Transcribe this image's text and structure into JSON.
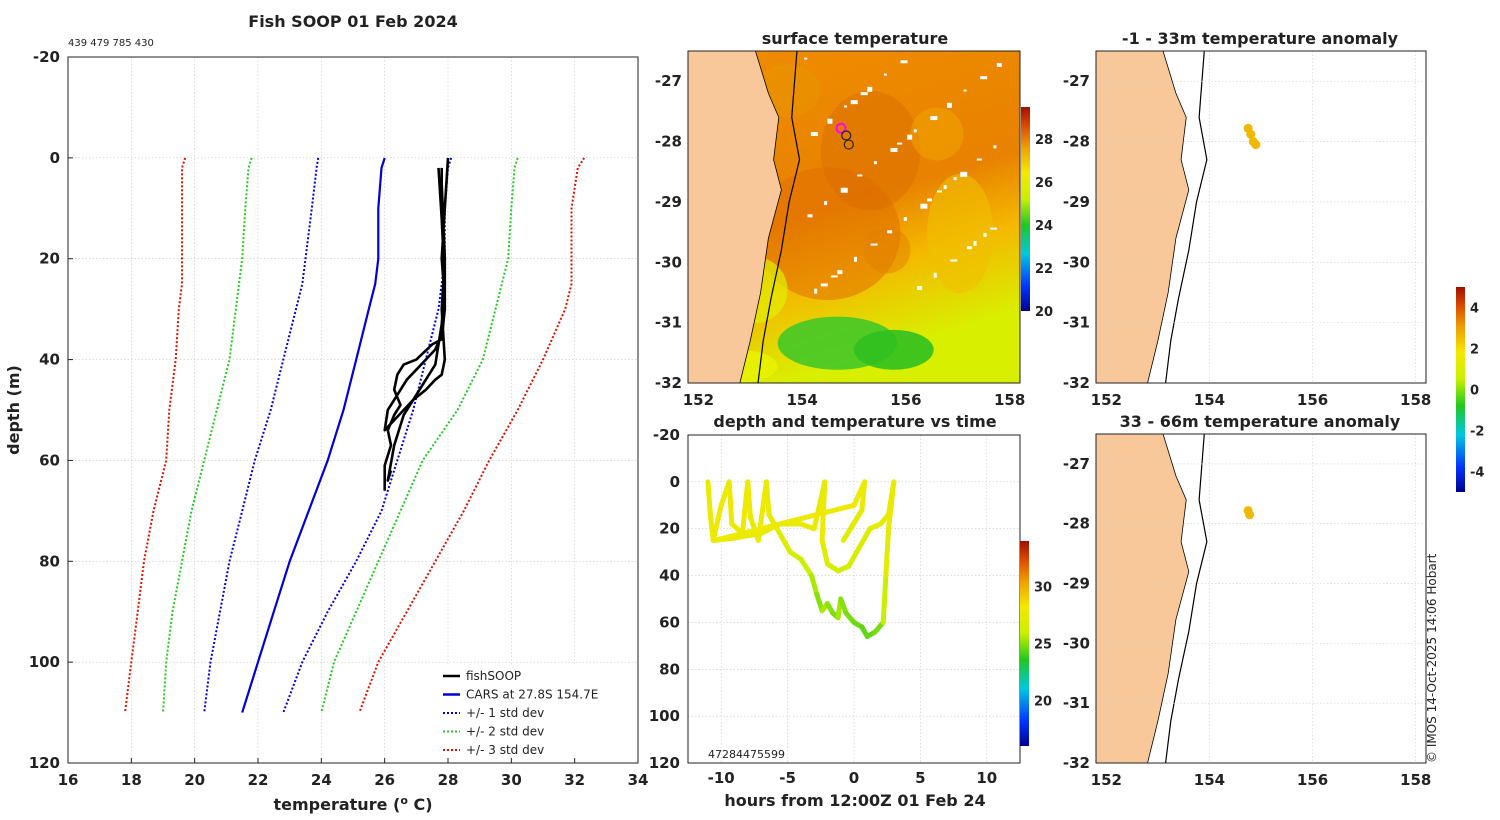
{
  "chart_data": [
    {
      "id": "profile",
      "type": "line",
      "title": "Fish SOOP 01 Feb 2024",
      "subtitle": "439 479 785 430",
      "xlabel": "temperature (",
      "xlabel_sup": "o",
      "xlabel_end": " C)",
      "ylabel": "depth (m)",
      "xlim": [
        16,
        34
      ],
      "ylim": [
        -20,
        120
      ],
      "xticks": [
        "16",
        "18",
        "20",
        "22",
        "24",
        "26",
        "28",
        "30",
        "32",
        "34"
      ],
      "yticks": [
        "-20",
        "0",
        "20",
        "40",
        "60",
        "80",
        "100",
        "120"
      ],
      "legend": [
        "fishSOOP",
        "CARS at 27.8S 154.7E",
        "+/- 1 std dev",
        "+/- 2 std dev",
        "+/- 3 std dev"
      ],
      "colors": {
        "fish": "#000000",
        "cars": "#0000dd",
        "std1": "#0000dd",
        "std2": "#22cc22",
        "std3": "#dd1100"
      },
      "depths": [
        0,
        2,
        10,
        20,
        25,
        30,
        40,
        50,
        60,
        70,
        80,
        90,
        100,
        110
      ],
      "cars": [
        26.0,
        25.9,
        25.8,
        25.8,
        25.7,
        25.5,
        25.1,
        24.7,
        24.2,
        23.6,
        23.0,
        22.5,
        22.0,
        21.5
      ],
      "std1_minus": [
        23.9,
        23.85,
        23.7,
        23.5,
        23.4,
        23.2,
        22.8,
        22.4,
        21.9,
        21.5,
        21.1,
        20.8,
        20.5,
        20.3
      ],
      "std1_plus": [
        28.1,
        28.0,
        27.9,
        27.9,
        27.8,
        27.7,
        27.3,
        26.9,
        26.4,
        25.9,
        25.1,
        24.2,
        23.4,
        22.8
      ],
      "std2_minus": [
        21.8,
        21.7,
        21.6,
        21.5,
        21.4,
        21.3,
        21.1,
        20.7,
        20.3,
        19.9,
        19.6,
        19.3,
        19.1,
        19.0
      ],
      "std2_plus": [
        30.2,
        30.1,
        30.0,
        29.9,
        29.7,
        29.5,
        29.1,
        28.3,
        27.2,
        26.5,
        25.8,
        25.1,
        24.4,
        24.0
      ],
      "std3_minus": [
        19.7,
        19.6,
        19.6,
        19.6,
        19.6,
        19.5,
        19.4,
        19.2,
        19.1,
        18.7,
        18.4,
        18.2,
        18.0,
        17.8
      ],
      "std3_plus": [
        32.3,
        32.1,
        31.9,
        31.9,
        31.9,
        31.7,
        31.0,
        30.2,
        29.3,
        28.5,
        27.6,
        26.7,
        25.8,
        25.2
      ],
      "fish_casts": [
        [
          [
            27.8,
            2
          ],
          [
            27.8,
            10
          ],
          [
            27.9,
            20
          ],
          [
            27.9,
            30
          ],
          [
            27.8,
            36
          ],
          [
            27.5,
            37
          ],
          [
            27.0,
            40
          ],
          [
            26.6,
            41
          ],
          [
            26.4,
            43
          ],
          [
            26.3,
            46
          ],
          [
            26.5,
            49
          ],
          [
            26.3,
            51
          ],
          [
            26.1,
            54
          ],
          [
            26.2,
            57
          ],
          [
            26.0,
            61
          ],
          [
            26.0,
            66
          ]
        ],
        [
          [
            28.0,
            0
          ],
          [
            27.9,
            10
          ],
          [
            27.8,
            20
          ],
          [
            27.9,
            28
          ],
          [
            27.8,
            35
          ],
          [
            27.6,
            38
          ],
          [
            27.3,
            40
          ],
          [
            27.0,
            42
          ],
          [
            26.7,
            44
          ],
          [
            26.4,
            47
          ],
          [
            26.1,
            50
          ],
          [
            26.0,
            54
          ],
          [
            26.3,
            52
          ],
          [
            26.6,
            50
          ],
          [
            26.9,
            48
          ],
          [
            27.3,
            46
          ],
          [
            27.6,
            44
          ],
          [
            27.8,
            43
          ],
          [
            27.9,
            40
          ],
          [
            27.8,
            30
          ],
          [
            27.9,
            20
          ],
          [
            27.8,
            5
          ]
        ],
        [
          [
            27.7,
            2
          ],
          [
            27.8,
            12
          ],
          [
            27.9,
            25
          ],
          [
            27.8,
            33
          ],
          [
            27.6,
            41
          ],
          [
            27.0,
            47
          ],
          [
            26.6,
            51
          ],
          [
            26.3,
            57
          ],
          [
            26.1,
            64
          ],
          [
            26.2,
            62
          ]
        ]
      ]
    },
    {
      "id": "surface",
      "type": "heatmap",
      "title": "surface temperature",
      "xlim": [
        151.8,
        158.2
      ],
      "ylim": [
        -32,
        -26.5
      ],
      "xticks": [
        "152",
        "154",
        "156",
        "158"
      ],
      "yticks": [
        "-27",
        "-28",
        "-29",
        "-30",
        "-31",
        "-32"
      ],
      "colorbar_ticks": [
        "20",
        "22",
        "24",
        "26",
        "28"
      ],
      "colorbar_range": [
        20,
        29.5
      ],
      "track": [
        [
          154.75,
          -27.78
        ],
        [
          154.85,
          -27.9
        ],
        [
          154.9,
          -28.05
        ]
      ]
    },
    {
      "id": "timeseries",
      "type": "scatter",
      "title": "depth and temperature vs time",
      "xlabel": "hours from 12:00Z 01 Feb 24",
      "xlim": [
        -12.5,
        12.5
      ],
      "ylim": [
        -20,
        120
      ],
      "xticks": [
        "-10",
        "-5",
        "0",
        "5",
        "10"
      ],
      "yticks": [
        "-20",
        "0",
        "20",
        "40",
        "60",
        "80",
        "100",
        "120"
      ],
      "colorbar_ticks": [
        "20",
        "25",
        "30"
      ],
      "colorbar_range": [
        16,
        34
      ],
      "id_labels": "47284475599",
      "profile": [
        [
          -11.0,
          0,
          27.8
        ],
        [
          -10.8,
          15,
          27.8
        ],
        [
          -10.6,
          25,
          27.6
        ],
        [
          -10.0,
          10,
          27.9
        ],
        [
          -9.4,
          0,
          27.9
        ],
        [
          -9.2,
          18,
          27.8
        ],
        [
          -8.4,
          22,
          27.6
        ],
        [
          -8.0,
          0,
          28.0
        ],
        [
          -7.8,
          15,
          27.8
        ],
        [
          -7.2,
          25,
          27.6
        ],
        [
          -6.6,
          0,
          27.9
        ],
        [
          -6.4,
          14,
          27.8
        ],
        [
          -5.6,
          22,
          27.5
        ],
        [
          -4.8,
          30,
          27.0
        ],
        [
          -4.0,
          33,
          26.5
        ],
        [
          -3.2,
          40,
          26.0
        ],
        [
          -2.8,
          48,
          25.5
        ],
        [
          -2.4,
          55,
          25.0
        ],
        [
          -2.0,
          52,
          25.5
        ],
        [
          -1.6,
          56,
          25.0
        ],
        [
          -1.2,
          58,
          24.8
        ],
        [
          -1.0,
          50,
          25.4
        ],
        [
          -0.6,
          56,
          25.0
        ],
        [
          0.0,
          60,
          24.8
        ],
        [
          0.6,
          62,
          24.6
        ],
        [
          1.0,
          66,
          24.4
        ],
        [
          1.6,
          64,
          24.5
        ],
        [
          2.2,
          60,
          24.8
        ],
        [
          2.4,
          40,
          26.0
        ],
        [
          2.6,
          20,
          27.3
        ],
        [
          2.8,
          10,
          27.7
        ],
        [
          3.0,
          0,
          27.9
        ],
        [
          2.6,
          14,
          27.7
        ],
        [
          2.0,
          18,
          27.5
        ],
        [
          1.2,
          20,
          27.4
        ],
        [
          0.4,
          28,
          27.0
        ],
        [
          -0.4,
          36,
          26.6
        ],
        [
          -1.2,
          38,
          26.4
        ],
        [
          -2.0,
          35,
          26.6
        ],
        [
          -2.4,
          25,
          27.2
        ],
        [
          -2.2,
          0,
          27.9
        ],
        [
          -3.0,
          20,
          27.5
        ],
        [
          -4.0,
          18,
          27.6
        ],
        [
          -5.6,
          18,
          27.6
        ],
        [
          -7.0,
          22,
          27.6
        ],
        [
          -9.0,
          24,
          27.6
        ],
        [
          -10.5,
          25,
          27.6
        ],
        [
          0.0,
          10,
          27.8
        ],
        [
          0.8,
          0,
          27.9
        ],
        [
          0.6,
          12,
          27.8
        ],
        [
          -0.8,
          25,
          27.2
        ]
      ]
    },
    {
      "id": "anom1",
      "type": "scatter",
      "title": "-1 - 33m temperature anomaly",
      "xlim": [
        151.8,
        158.2
      ],
      "ylim": [
        -32,
        -26.5
      ],
      "xticks": [
        "152",
        "154",
        "156",
        "158"
      ],
      "yticks": [
        "-27",
        "-28",
        "-29",
        "-30",
        "-31",
        "-32"
      ],
      "points": [
        [
          154.75,
          -27.78
        ],
        [
          154.8,
          -27.88
        ],
        [
          154.85,
          -28.0
        ],
        [
          154.9,
          -28.05
        ]
      ],
      "value": 2.6
    },
    {
      "id": "anom2",
      "type": "scatter",
      "title": "33 - 66m temperature anomaly",
      "xlim": [
        151.8,
        158.2
      ],
      "ylim": [
        -32,
        -26.5
      ],
      "xticks": [
        "152",
        "154",
        "156",
        "158"
      ],
      "yticks": [
        "-27",
        "-28",
        "-29",
        "-30",
        "-31",
        "-32"
      ],
      "points": [
        [
          154.75,
          -27.78
        ],
        [
          154.78,
          -27.85
        ]
      ],
      "value": 2.6
    },
    {
      "id": "anom_colorbar",
      "type": "colorbar",
      "ticks": [
        "-4",
        "-2",
        "0",
        "2",
        "4"
      ],
      "range": [
        -5,
        5
      ]
    }
  ],
  "credit": "© IMOS 14-Oct-2025 14:06 Hobart"
}
